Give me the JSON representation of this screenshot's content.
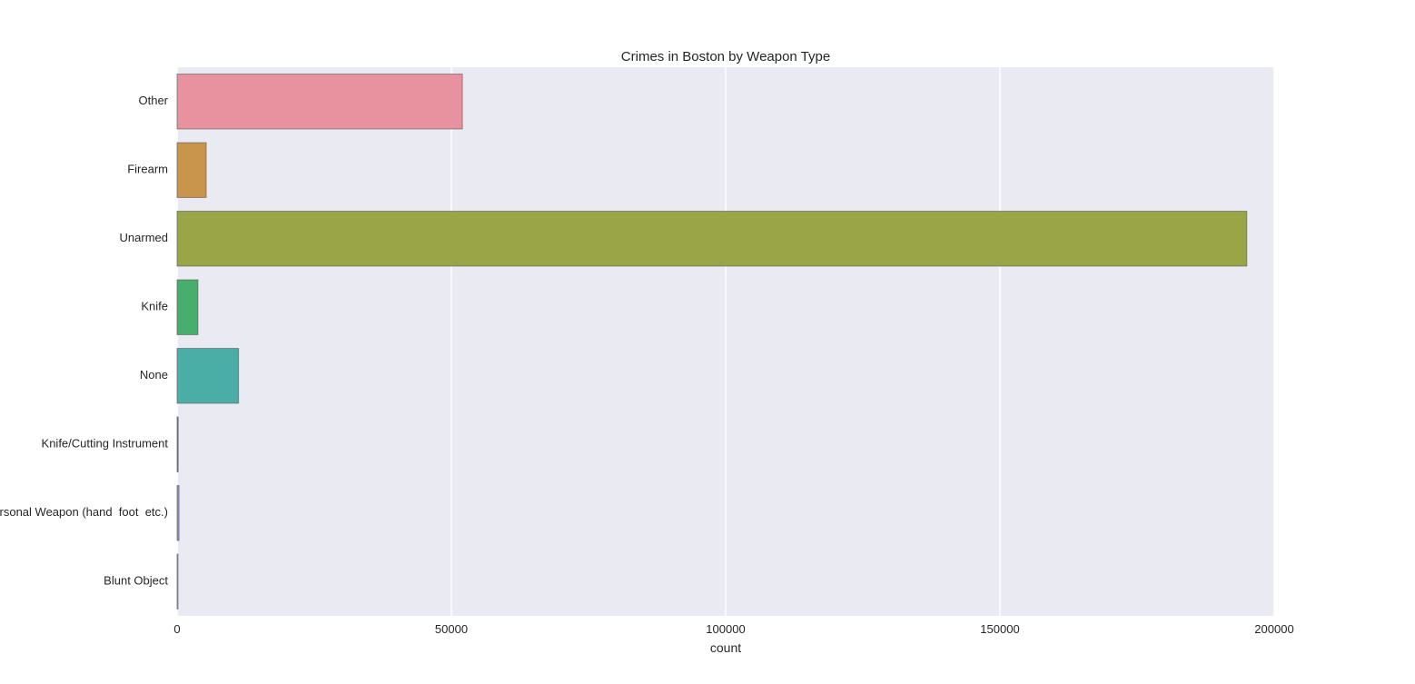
{
  "chart_data": {
    "type": "bar",
    "orientation": "horizontal",
    "title": "Crimes in Boston by Weapon Type",
    "xlabel": "count",
    "ylabel": "",
    "xlim": [
      0,
      200000
    ],
    "xticks": [
      0,
      50000,
      100000,
      150000,
      200000
    ],
    "xtick_labels": [
      "0",
      "50000",
      "100000",
      "150000",
      "200000"
    ],
    "grid": true,
    "categories": [
      "Other",
      "Firearm",
      "Unarmed",
      "Knife",
      "None",
      "Knife/Cutting Instrument",
      "Personal Weapon (hand  foot  etc.)",
      "Blunt Object"
    ],
    "values": [
      52000,
      5300,
      195000,
      3800,
      11200,
      200,
      350,
      100
    ],
    "colors": [
      "#e8929f",
      "#c9954c",
      "#99a546",
      "#47ae6e",
      "#4aaea6",
      "#4a9ab0",
      "#9b8fcc",
      "#e09dc7"
    ],
    "background": "#eaeaf2",
    "gridline_color": "#ffffff"
  }
}
